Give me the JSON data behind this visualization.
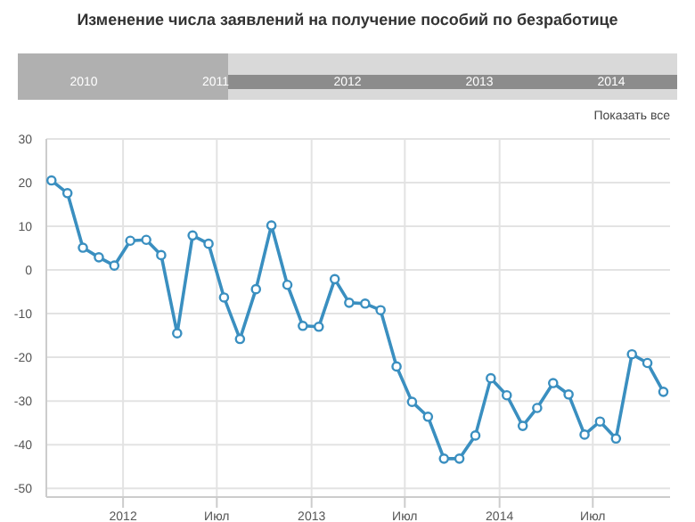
{
  "chart_data": {
    "type": "line",
    "title": "Изменение числа заявлений на получение пособий по безработице",
    "x": [
      "2011-08-15",
      "2011-09-15",
      "2011-10-15",
      "2011-11-15",
      "2011-12-15",
      "2012-01-15",
      "2012-02-15",
      "2012-03-15",
      "2012-04-15",
      "2012-05-15",
      "2012-06-15",
      "2012-07-15",
      "2012-08-15",
      "2012-09-15",
      "2012-10-15",
      "2012-11-15",
      "2012-12-15",
      "2013-01-15",
      "2013-02-15",
      "2013-03-15",
      "2013-04-15",
      "2013-05-15",
      "2013-06-15",
      "2013-07-15",
      "2013-08-15",
      "2013-09-15",
      "2013-10-15",
      "2013-11-15",
      "2013-12-15",
      "2014-01-15",
      "2014-02-15",
      "2014-03-15",
      "2014-04-15",
      "2014-05-15",
      "2014-06-15",
      "2014-07-15",
      "2014-08-15",
      "2014-09-15",
      "2014-10-15",
      "2014-11-15"
    ],
    "values": [
      20.5,
      17.6,
      5.1,
      2.9,
      1,
      6.7,
      6.9,
      3.4,
      -14.5,
      7.9,
      6,
      -6.3,
      -15.8,
      -4.4,
      10.2,
      -3.4,
      -12.8,
      -13,
      -2.1,
      -7.5,
      -7.7,
      -9.2,
      -22.1,
      -30.2,
      -33.6,
      -43.2,
      -43.2,
      -37.9,
      -24.8,
      -28.7,
      -35.7,
      -31.6,
      -25.9,
      -28.5,
      -37.7,
      -34.7,
      -38.6,
      -19.3,
      -21.3,
      -27.9
    ],
    "color": "#3a8fc0",
    "marker": "circle",
    "grid": true,
    "xlim": [
      "2011-08-05",
      "2014-11-28"
    ],
    "xticks": [
      {
        "value": "2012-01-01",
        "label": "2012"
      },
      {
        "value": "2012-07-01",
        "label": "Июл"
      },
      {
        "value": "2013-01-01",
        "label": "2013"
      },
      {
        "value": "2013-07-01",
        "label": "Июл"
      },
      {
        "value": "2014-01-01",
        "label": "2014"
      },
      {
        "value": "2014-07-01",
        "label": "Июл"
      }
    ],
    "ylim": [
      -52,
      30
    ],
    "yticks": [
      -50,
      -40,
      -30,
      -20,
      -10,
      0,
      10,
      20,
      30
    ],
    "annotations": [
      "2010",
      "2011",
      "2012",
      "2013",
      "2014",
      "Показать все"
    ]
  }
}
